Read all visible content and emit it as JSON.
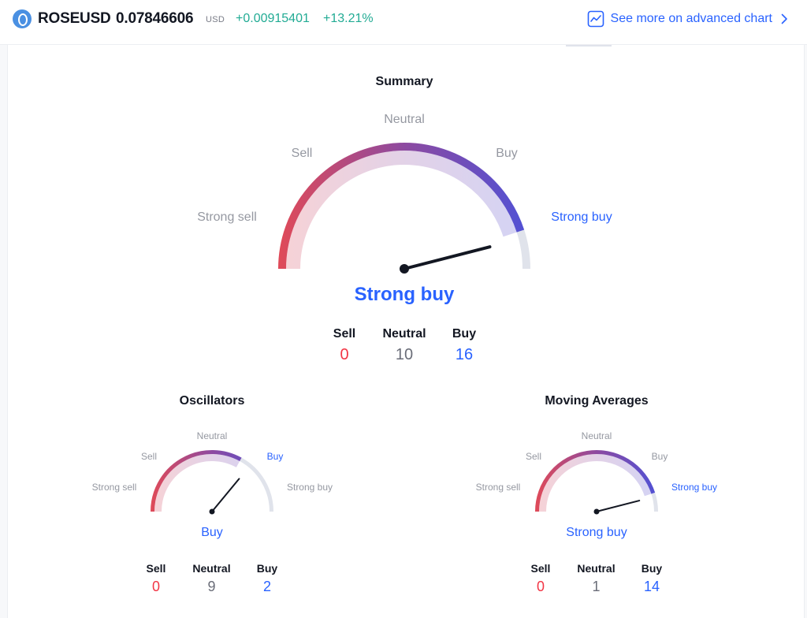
{
  "header": {
    "symbol": "ROSEUSD",
    "price": "0.07846606",
    "currency": "USD",
    "change": "+0.00915401",
    "change_percent": "+13.21%",
    "advanced_chart_link": "See more on advanced chart",
    "icons": {
      "logo": "rose-coin-logo",
      "chart": "chart-icon",
      "chevron": "chevron-right-icon"
    }
  },
  "colors": {
    "sell": "#f23645",
    "buy": "#2962ff",
    "neutral": "#9598a1",
    "positive": "#22ab94",
    "gradient": [
      "#e04a58",
      "#8d4aa0",
      "#4f51d6"
    ]
  },
  "summary": {
    "title": "Summary",
    "labels": {
      "strong_sell": "Strong sell",
      "sell": "Sell",
      "neutral": "Neutral",
      "buy": "Buy",
      "strong_buy": "Strong buy"
    },
    "verdict": "Strong buy",
    "needle_position": 0.92,
    "fill_fraction": 0.9,
    "counts": {
      "sell_label": "Sell",
      "neutral_label": "Neutral",
      "buy_label": "Buy",
      "sell": "0",
      "neutral": "10",
      "buy": "16"
    }
  },
  "oscillators": {
    "title": "Oscillators",
    "labels": {
      "strong_sell": "Strong sell",
      "sell": "Sell",
      "neutral": "Neutral",
      "buy": "Buy",
      "strong_buy": "Strong buy"
    },
    "verdict": "Buy",
    "needle_position": 0.72,
    "fill_fraction": 0.66,
    "counts": {
      "sell_label": "Sell",
      "neutral_label": "Neutral",
      "buy_label": "Buy",
      "sell": "0",
      "neutral": "9",
      "buy": "2"
    }
  },
  "moving_averages": {
    "title": "Moving Averages",
    "labels": {
      "strong_sell": "Strong sell",
      "sell": "Sell",
      "neutral": "Neutral",
      "buy": "Buy",
      "strong_buy": "Strong buy"
    },
    "verdict": "Strong buy",
    "needle_position": 0.92,
    "fill_fraction": 0.9,
    "counts": {
      "sell_label": "Sell",
      "neutral_label": "Neutral",
      "buy_label": "Buy",
      "sell": "0",
      "neutral": "1",
      "buy": "14"
    }
  }
}
